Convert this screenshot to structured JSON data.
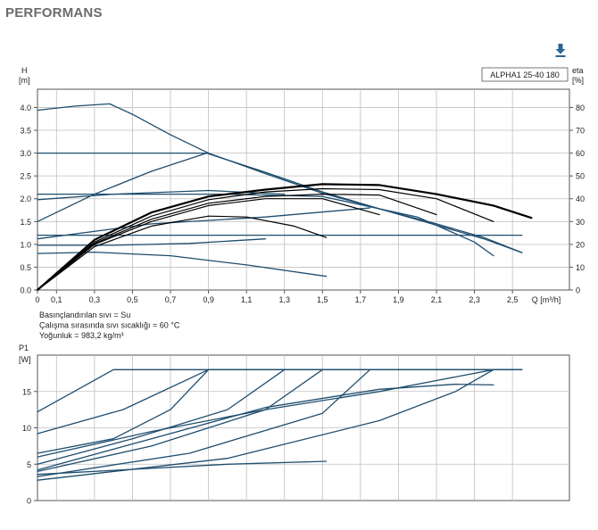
{
  "page": {
    "title": "PERFORMANS"
  },
  "colors": {
    "curve_blue": "#1e4d6e",
    "curve_black": "#000000",
    "grid": "#bfbfbf",
    "frame": "#555555"
  },
  "icons": {
    "download": "download-arrow-icon"
  },
  "chart_data": [
    {
      "type": "line",
      "name": "QH",
      "legend_box": "ALPHA1 25-40 180",
      "ylabel_left": "H\n[m]",
      "ylabel_right": "eta\n[%]",
      "xlabel": "Q [m³/h]",
      "xlim": [
        0,
        2.8
      ],
      "ylim": [
        0,
        4.4
      ],
      "ylim_right": [
        0,
        88
      ],
      "x_ticks": [
        "0",
        "0,1",
        "0,3",
        "0,5",
        "0,7",
        "0,9",
        "1,1",
        "1,3",
        "1,5",
        "1,7",
        "1,9",
        "2,1",
        "2,3",
        "2,5"
      ],
      "x_tick_values": [
        0,
        0.1,
        0.3,
        0.5,
        0.7,
        0.9,
        1.1,
        1.3,
        1.5,
        1.7,
        1.9,
        2.1,
        2.3,
        2.5
      ],
      "y_ticks": [
        "0.0",
        "0.5",
        "1.0",
        "1.5",
        "2.0",
        "2.5",
        "3.0",
        "3.5",
        "4.0"
      ],
      "y_tick_values": [
        0,
        0.5,
        1,
        1.5,
        2,
        2.5,
        3,
        3.5,
        4
      ],
      "y_ticks_right": [
        "0",
        "10",
        "20",
        "30",
        "40",
        "50",
        "60",
        "70",
        "80"
      ],
      "y_tick_values_right": [
        0,
        10,
        20,
        30,
        40,
        50,
        60,
        70,
        80
      ],
      "grid": true,
      "notes": [
        "Basınçlandırılan sıvı = Su",
        "Çalışma sırasında sıvı sıcaklığı = 60 °C",
        "Yoğunluk = 983,2 kg/m³"
      ],
      "series": [
        {
          "color": "blue",
          "points": [
            [
              0,
              3.94
            ],
            [
              0.2,
              4.03
            ],
            [
              0.38,
              4.08
            ],
            [
              0.5,
              3.85
            ],
            [
              0.7,
              3.4
            ],
            [
              0.9,
              3.0
            ],
            [
              1.2,
              2.55
            ],
            [
              1.5,
              2.12
            ],
            [
              1.8,
              1.78
            ],
            [
              2.1,
              1.42
            ],
            [
              2.35,
              1.12
            ],
            [
              2.55,
              0.82
            ]
          ]
        },
        {
          "color": "blue",
          "points": [
            [
              0,
              3.0
            ],
            [
              0.89,
              3.0
            ]
          ]
        },
        {
          "color": "blue",
          "points": [
            [
              0,
              1.5
            ],
            [
              0.3,
              2.1
            ],
            [
              0.6,
              2.6
            ],
            [
              0.89,
              3.0
            ],
            [
              1.2,
              2.58
            ],
            [
              1.5,
              2.15
            ],
            [
              1.8,
              1.78
            ],
            [
              2.1,
              1.45
            ],
            [
              2.35,
              1.15
            ],
            [
              2.55,
              0.82
            ]
          ]
        },
        {
          "color": "blue",
          "points": [
            [
              0,
              2.1
            ],
            [
              1.0,
              2.1
            ],
            [
              1.5,
              2.05
            ],
            [
              2.0,
              1.6
            ],
            [
              2.3,
              1.05
            ],
            [
              2.4,
              0.75
            ]
          ]
        },
        {
          "color": "blue",
          "points": [
            [
              0,
              1.98
            ],
            [
              0.4,
              2.1
            ],
            [
              0.9,
              2.18
            ],
            [
              1.3,
              2.1
            ]
          ]
        },
        {
          "color": "blue",
          "points": [
            [
              0,
              1.2
            ],
            [
              2.55,
              1.2
            ]
          ]
        },
        {
          "color": "blue",
          "points": [
            [
              0,
              1.12
            ],
            [
              0.6,
              1.45
            ],
            [
              1.2,
              1.6
            ],
            [
              1.75,
              1.8
            ]
          ]
        },
        {
          "color": "blue",
          "points": [
            [
              0,
              0.98
            ],
            [
              0.4,
              0.98
            ],
            [
              0.8,
              1.02
            ],
            [
              1.2,
              1.12
            ]
          ]
        },
        {
          "color": "blue",
          "points": [
            [
              0,
              0.8
            ],
            [
              0.3,
              0.83
            ],
            [
              0.7,
              0.75
            ],
            [
              1.1,
              0.55
            ],
            [
              1.52,
              0.3
            ]
          ]
        },
        {
          "color": "black",
          "points": [
            [
              0,
              0
            ],
            [
              0.3,
              1.1
            ],
            [
              0.6,
              1.7
            ],
            [
              0.9,
              2.05
            ],
            [
              1.2,
              2.2
            ],
            [
              1.5,
              2.32
            ],
            [
              1.8,
              2.3
            ],
            [
              2.1,
              2.1
            ],
            [
              2.4,
              1.85
            ],
            [
              2.6,
              1.58
            ]
          ]
        },
        {
          "color": "black",
          "points": [
            [
              0,
              0
            ],
            [
              0.3,
              1.05
            ],
            [
              0.6,
              1.62
            ],
            [
              0.9,
              1.98
            ],
            [
              1.2,
              2.15
            ],
            [
              1.5,
              2.22
            ],
            [
              1.8,
              2.2
            ],
            [
              2.1,
              2.0
            ],
            [
              2.4,
              1.5
            ]
          ]
        },
        {
          "color": "black",
          "points": [
            [
              0,
              0
            ],
            [
              0.3,
              1.02
            ],
            [
              0.6,
              1.55
            ],
            [
              0.9,
              1.9
            ],
            [
              1.2,
              2.05
            ],
            [
              1.5,
              2.1
            ],
            [
              1.8,
              2.08
            ],
            [
              2.1,
              1.65
            ]
          ]
        },
        {
          "color": "black",
          "points": [
            [
              0,
              0
            ],
            [
              0.3,
              1.0
            ],
            [
              0.6,
              1.5
            ],
            [
              0.9,
              1.85
            ],
            [
              1.2,
              2.0
            ],
            [
              1.5,
              2.0
            ],
            [
              1.8,
              1.65
            ]
          ]
        },
        {
          "color": "black",
          "points": [
            [
              0,
              0
            ],
            [
              0.3,
              0.95
            ],
            [
              0.6,
              1.4
            ],
            [
              0.9,
              1.62
            ],
            [
              1.1,
              1.6
            ],
            [
              1.35,
              1.4
            ],
            [
              1.52,
              1.15
            ]
          ]
        }
      ]
    },
    {
      "type": "line",
      "name": "P1",
      "ylabel_left": "P1\n[W]",
      "xlim": [
        0,
        2.8
      ],
      "ylim": [
        0,
        20
      ],
      "y_ticks": [
        "0",
        "5",
        "10",
        "15"
      ],
      "y_tick_values": [
        0,
        5,
        10,
        15
      ],
      "grid": true,
      "series": [
        {
          "color": "blue",
          "points": [
            [
              0,
              12.2
            ],
            [
              0.4,
              18
            ],
            [
              2.55,
              18
            ]
          ]
        },
        {
          "color": "blue",
          "points": [
            [
              0,
              9.2
            ],
            [
              0.45,
              12.5
            ],
            [
              0.9,
              18
            ],
            [
              2.55,
              18
            ]
          ]
        },
        {
          "color": "blue",
          "points": [
            [
              0,
              6.5
            ],
            [
              0.4,
              8.5
            ],
            [
              0.7,
              12.5
            ],
            [
              0.9,
              18
            ]
          ]
        },
        {
          "color": "blue",
          "points": [
            [
              0,
              5.0
            ],
            [
              0.5,
              8.5
            ],
            [
              1.0,
              12.5
            ],
            [
              1.3,
              18
            ]
          ]
        },
        {
          "color": "blue",
          "points": [
            [
              0,
              4.0
            ],
            [
              0.6,
              7.5
            ],
            [
              1.2,
              12.5
            ],
            [
              1.5,
              18
            ]
          ]
        },
        {
          "color": "blue",
          "points": [
            [
              0,
              3.3
            ],
            [
              0.8,
              6.5
            ],
            [
              1.5,
              12
            ],
            [
              1.75,
              18
            ]
          ]
        },
        {
          "color": "blue",
          "points": [
            [
              0,
              2.8
            ],
            [
              1.0,
              5.8
            ],
            [
              1.8,
              11
            ],
            [
              2.2,
              15
            ],
            [
              2.4,
              18
            ]
          ]
        },
        {
          "color": "blue",
          "points": [
            [
              0,
              6.0
            ],
            [
              0.6,
              9.5
            ],
            [
              1.2,
              12.5
            ],
            [
              1.8,
              15
            ],
            [
              2.1,
              16.5
            ],
            [
              2.4,
              18
            ],
            [
              2.55,
              18
            ]
          ]
        },
        {
          "color": "blue",
          "points": [
            [
              0,
              4.2
            ],
            [
              0.6,
              8.5
            ],
            [
              1.2,
              12.8
            ],
            [
              1.8,
              15.3
            ],
            [
              2.2,
              16
            ],
            [
              2.4,
              15.9
            ]
          ]
        },
        {
          "color": "blue",
          "points": [
            [
              0,
              3.6
            ],
            [
              0.5,
              4.3
            ],
            [
              1.0,
              5.0
            ],
            [
              1.52,
              5.4
            ]
          ]
        }
      ]
    }
  ]
}
